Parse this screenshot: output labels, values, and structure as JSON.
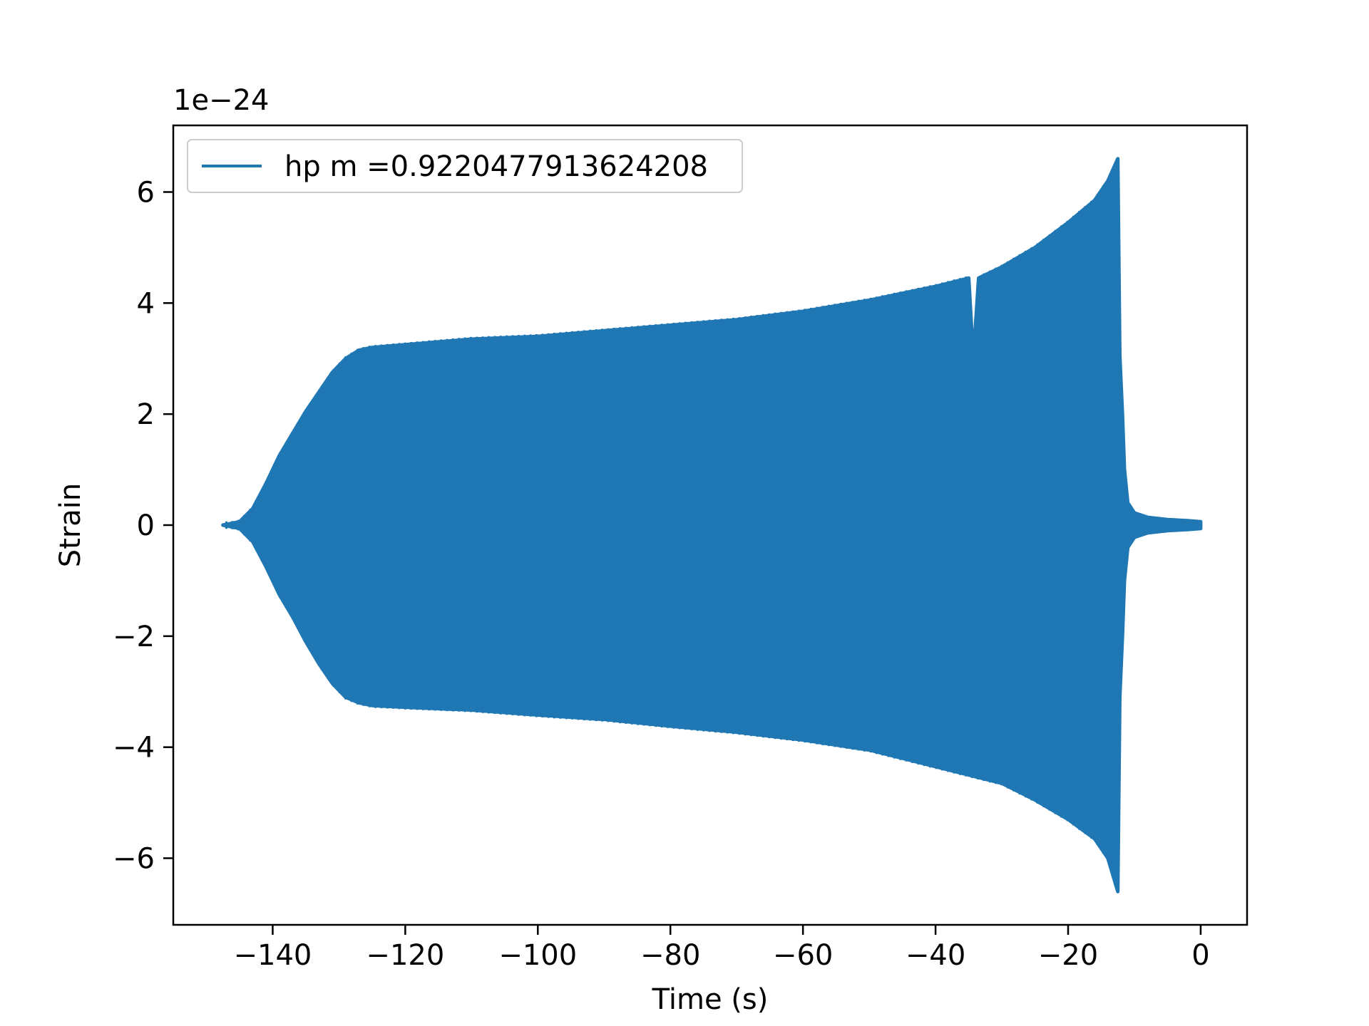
{
  "chart_data": {
    "type": "line",
    "title": "",
    "xlabel": "Time (s)",
    "ylabel": "Strain",
    "y_offset_text": "1e−24",
    "y_scale_exponent": -24,
    "xlim": [
      -155,
      7
    ],
    "ylim": [
      -7.2,
      7.2
    ],
    "xticks": [
      -140,
      -120,
      -100,
      -80,
      -60,
      -40,
      -20,
      0
    ],
    "xtick_labels": [
      "−140",
      "−120",
      "−100",
      "−80",
      "−60",
      "−40",
      "−20",
      "0"
    ],
    "yticks": [
      -6,
      -4,
      -2,
      0,
      2,
      4,
      6
    ],
    "ytick_labels": [
      "−6",
      "−4",
      "−2",
      "0",
      "2",
      "4",
      "6"
    ],
    "grid": false,
    "legend_position": "top-left",
    "series": [
      {
        "name": "hp m =0.9220477913624208",
        "color": "#1f77b4",
        "style": "dense-oscillation",
        "x_start": -147.5,
        "x_end": 0,
        "envelope_upper": [
          [
            -147.5,
            0.0
          ],
          [
            -145,
            0.06
          ],
          [
            -143,
            0.3
          ],
          [
            -141,
            0.75
          ],
          [
            -139,
            1.25
          ],
          [
            -137,
            1.65
          ],
          [
            -135,
            2.05
          ],
          [
            -133,
            2.4
          ],
          [
            -131,
            2.75
          ],
          [
            -129,
            3.0
          ],
          [
            -127,
            3.15
          ],
          [
            -125,
            3.2
          ],
          [
            -120,
            3.25
          ],
          [
            -115,
            3.3
          ],
          [
            -110,
            3.35
          ],
          [
            -100,
            3.4
          ],
          [
            -90,
            3.5
          ],
          [
            -80,
            3.6
          ],
          [
            -70,
            3.7
          ],
          [
            -60,
            3.85
          ],
          [
            -50,
            4.05
          ],
          [
            -40,
            4.3
          ],
          [
            -35,
            4.45
          ],
          [
            -34.3,
            3.0
          ],
          [
            -33.5,
            4.45
          ],
          [
            -30,
            4.65
          ],
          [
            -25,
            5.0
          ],
          [
            -20,
            5.45
          ],
          [
            -16,
            5.85
          ],
          [
            -14,
            6.2
          ],
          [
            -12.5,
            6.6
          ],
          [
            -12.2,
            3.05
          ],
          [
            -11.8,
            2.0
          ],
          [
            -11.5,
            1.0
          ],
          [
            -11,
            0.4
          ],
          [
            -10,
            0.22
          ],
          [
            -8,
            0.14
          ],
          [
            -5,
            0.1
          ],
          [
            -2,
            0.08
          ],
          [
            0,
            0.06
          ]
        ],
        "envelope_lower": [
          [
            -147.5,
            0.0
          ],
          [
            -145,
            -0.06
          ],
          [
            -143,
            -0.3
          ],
          [
            -141,
            -0.75
          ],
          [
            -139,
            -1.25
          ],
          [
            -137,
            -1.65
          ],
          [
            -135,
            -2.1
          ],
          [
            -133,
            -2.5
          ],
          [
            -131,
            -2.85
          ],
          [
            -129,
            -3.1
          ],
          [
            -127,
            -3.2
          ],
          [
            -125,
            -3.25
          ],
          [
            -120,
            -3.28
          ],
          [
            -110,
            -3.33
          ],
          [
            -100,
            -3.42
          ],
          [
            -90,
            -3.5
          ],
          [
            -80,
            -3.62
          ],
          [
            -70,
            -3.73
          ],
          [
            -60,
            -3.87
          ],
          [
            -50,
            -4.05
          ],
          [
            -40,
            -4.35
          ],
          [
            -30,
            -4.65
          ],
          [
            -25,
            -4.95
          ],
          [
            -20,
            -5.3
          ],
          [
            -16,
            -5.65
          ],
          [
            -14,
            -6.0
          ],
          [
            -12.5,
            -6.6
          ],
          [
            -12.2,
            -3.1
          ],
          [
            -11.8,
            -2.0
          ],
          [
            -11.5,
            -1.0
          ],
          [
            -11,
            -0.4
          ],
          [
            -10,
            -0.22
          ],
          [
            -8,
            -0.14
          ],
          [
            -5,
            -0.1
          ],
          [
            -2,
            -0.08
          ],
          [
            0,
            -0.06
          ]
        ]
      }
    ]
  }
}
